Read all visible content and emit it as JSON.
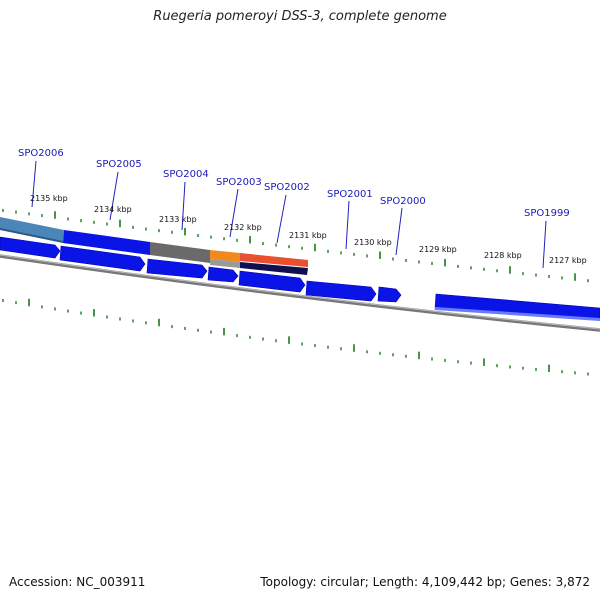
{
  "title": "Ruegeria pomeroyi DSS-3, complete genome",
  "footer": {
    "accession": "Accession: NC_003911",
    "summary": "Topology: circular; Length: 4,109,442 bp; Genes: 3,872"
  },
  "colors": {
    "gene": "#0a14e6",
    "gene_dark": "#0000b4",
    "backbone": "#777777",
    "tick": "#1a7a1a",
    "label": "#1a1ab8",
    "feature_steel": "#4a86b8",
    "feature_grey": "#6a6a6a",
    "feature_orange": "#f08a1e",
    "feature_navy": "#101050"
  },
  "kbp_labels": [
    "2135 kbp",
    "2134 kbp",
    "2133 kbp",
    "2132 kbp",
    "2131 kbp",
    "2130 kbp",
    "2129 kbp",
    "2128 kbp",
    "2127 kbp"
  ],
  "gene_labels": [
    "SPO2006",
    "SPO2005",
    "SPO2004",
    "SPO2003",
    "SPO2002",
    "SPO2001",
    "SPO2000",
    "SPO1999"
  ]
}
